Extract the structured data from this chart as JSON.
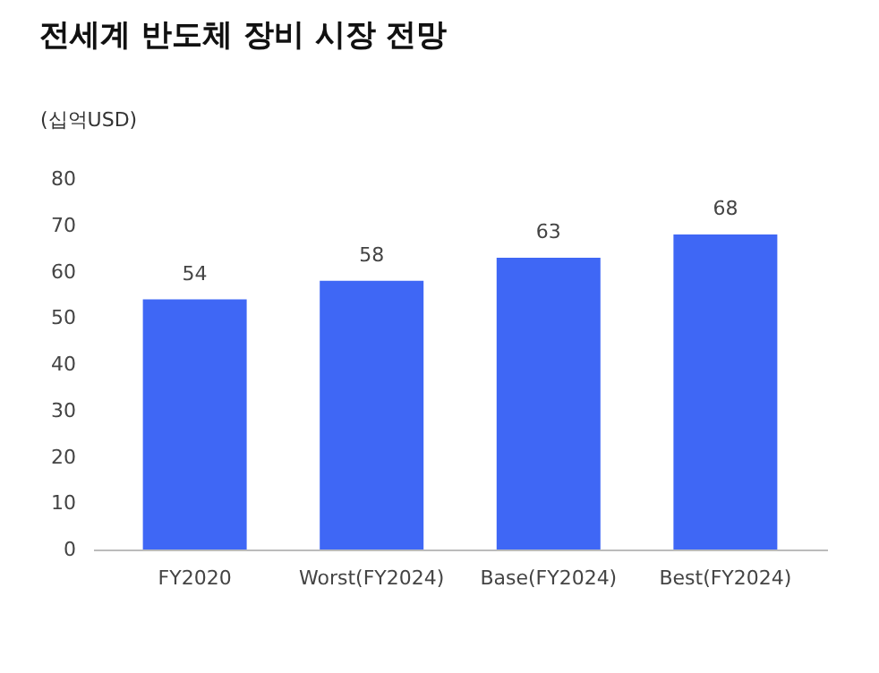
{
  "chart_data": {
    "type": "bar",
    "title": "전세계 반도체 장비 시장 전망",
    "ylabel": "(십억USD)",
    "categories": [
      "FY2020",
      "Worst(FY2024)",
      "Base(FY2024)",
      "Best(FY2024)"
    ],
    "values": [
      54,
      58,
      63,
      68
    ],
    "color": "#3f67f5",
    "ylim": [
      0,
      80
    ],
    "yticks": [
      0,
      10,
      20,
      30,
      40,
      50,
      60,
      70,
      80
    ],
    "data_labels": true,
    "grid": false
  }
}
